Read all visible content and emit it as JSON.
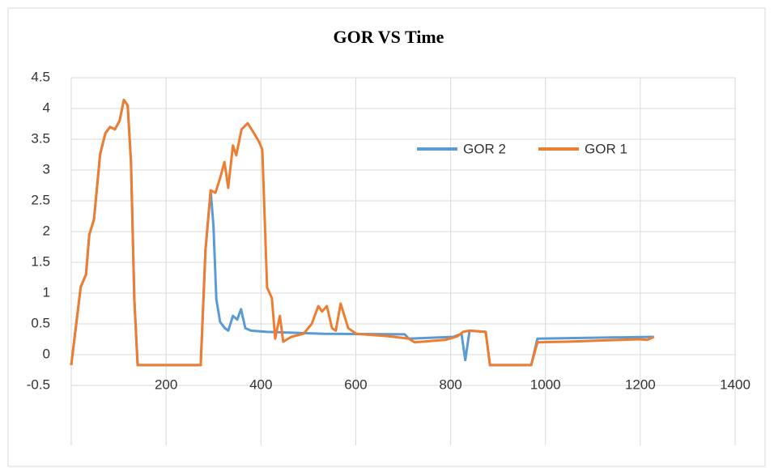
{
  "chart_data": {
    "type": "line",
    "title": "GOR VS Time",
    "xlim": [
      0,
      1400
    ],
    "xticks": [
      200,
      400,
      600,
      800,
      1000,
      1200,
      1400
    ],
    "ylim": [
      -0.5,
      4.5
    ],
    "yticks": [
      -0.5,
      0,
      0.5,
      1,
      1.5,
      2,
      2.5,
      3,
      3.5,
      4,
      4.5
    ],
    "grid": true,
    "legend": "top-right",
    "series": [
      {
        "name": "GOR 2",
        "color": "#5b9bd5",
        "x": [
          0,
          20,
          31,
          38,
          48,
          61,
          72,
          82,
          92,
          102,
          111,
          119,
          126,
          133,
          140,
          273,
          283,
          294,
          300,
          306,
          314,
          324,
          331,
          341,
          350,
          358,
          367,
          379,
          413,
          533,
          703,
          712,
          806,
          823,
          831,
          840,
          874,
          883,
          970,
          983,
          1229
        ],
        "values": [
          -0.17,
          1.1,
          1.3,
          1.95,
          2.2,
          3.26,
          3.6,
          3.7,
          3.66,
          3.8,
          4.14,
          4.05,
          3.13,
          0.9,
          -0.17,
          -0.17,
          1.7,
          2.67,
          2.08,
          0.9,
          0.53,
          0.43,
          0.39,
          0.63,
          0.57,
          0.74,
          0.43,
          0.39,
          0.37,
          0.34,
          0.33,
          0.26,
          0.29,
          0.34,
          -0.09,
          0.39,
          0.37,
          -0.17,
          -0.17,
          0.26,
          0.29
        ]
      },
      {
        "name": "GOR 1",
        "color": "#ed7d31",
        "x": [
          0,
          20,
          31,
          38,
          48,
          61,
          72,
          82,
          92,
          102,
          111,
          119,
          126,
          133,
          140,
          273,
          283,
          294,
          304,
          314,
          323,
          331,
          341,
          348,
          359,
          372,
          386,
          396,
          403,
          413,
          423,
          430,
          440,
          447,
          464,
          490,
          507,
          521,
          529,
          539,
          550,
          558,
          568,
          584,
          601,
          669,
          712,
          724,
          789,
          815,
          826,
          840,
          874,
          883,
          970,
          983,
          1045,
          1198,
          1215,
          1229
        ],
        "values": [
          -0.17,
          1.1,
          1.3,
          1.95,
          2.2,
          3.26,
          3.6,
          3.7,
          3.66,
          3.8,
          4.14,
          4.05,
          3.13,
          0.9,
          -0.17,
          -0.17,
          1.7,
          2.67,
          2.63,
          2.87,
          3.13,
          2.71,
          3.4,
          3.24,
          3.66,
          3.76,
          3.59,
          3.46,
          3.33,
          1.09,
          0.92,
          0.26,
          0.63,
          0.21,
          0.29,
          0.34,
          0.5,
          0.79,
          0.7,
          0.79,
          0.43,
          0.39,
          0.83,
          0.43,
          0.34,
          0.3,
          0.26,
          0.2,
          0.24,
          0.3,
          0.37,
          0.39,
          0.37,
          -0.17,
          -0.17,
          0.2,
          0.21,
          0.25,
          0.24,
          0.29
        ]
      }
    ]
  }
}
